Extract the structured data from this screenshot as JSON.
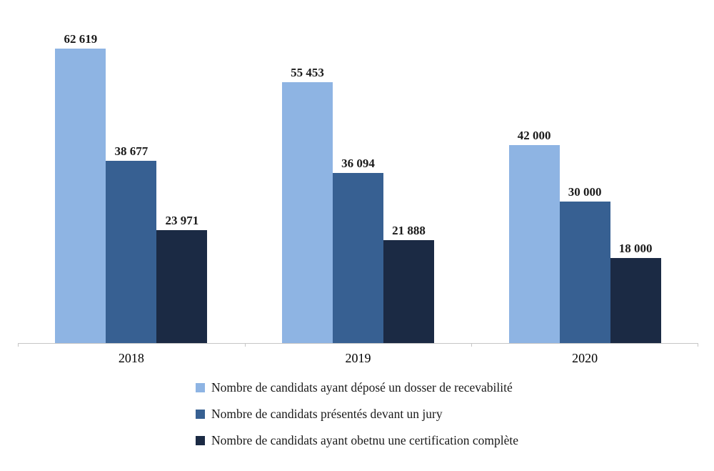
{
  "chart_data": {
    "type": "bar",
    "title": "",
    "xlabel": "",
    "ylabel": "",
    "categories": [
      "2018",
      "2019",
      "2020"
    ],
    "series": [
      {
        "name": "Nombre de candidats ayant déposé un dosser de recevabilité",
        "color": "#8EB4E3",
        "values": [
          62619,
          55453,
          42000
        ],
        "labels": [
          "62 619",
          "55 453",
          "42 000"
        ]
      },
      {
        "name": "Nombre de candidats présentés devant un jury",
        "color": "#376092",
        "values": [
          38677,
          36094,
          30000
        ],
        "labels": [
          "38 677",
          "36 094",
          "30 000"
        ]
      },
      {
        "name": "Nombre de candidats ayant obetnu une certification complète",
        "color": "#1B2A44",
        "values": [
          23971,
          21888,
          18000
        ],
        "labels": [
          "23 971",
          "21 888",
          "18 000"
        ]
      }
    ],
    "ylim": [
      0,
      65000
    ],
    "grid": false,
    "legend_position": "bottom",
    "colors": {
      "axis_line": "#c6c6c6",
      "value_label": "#1a1a1a",
      "category_label": "#000000",
      "legend_text": "#1a1a1a"
    }
  }
}
